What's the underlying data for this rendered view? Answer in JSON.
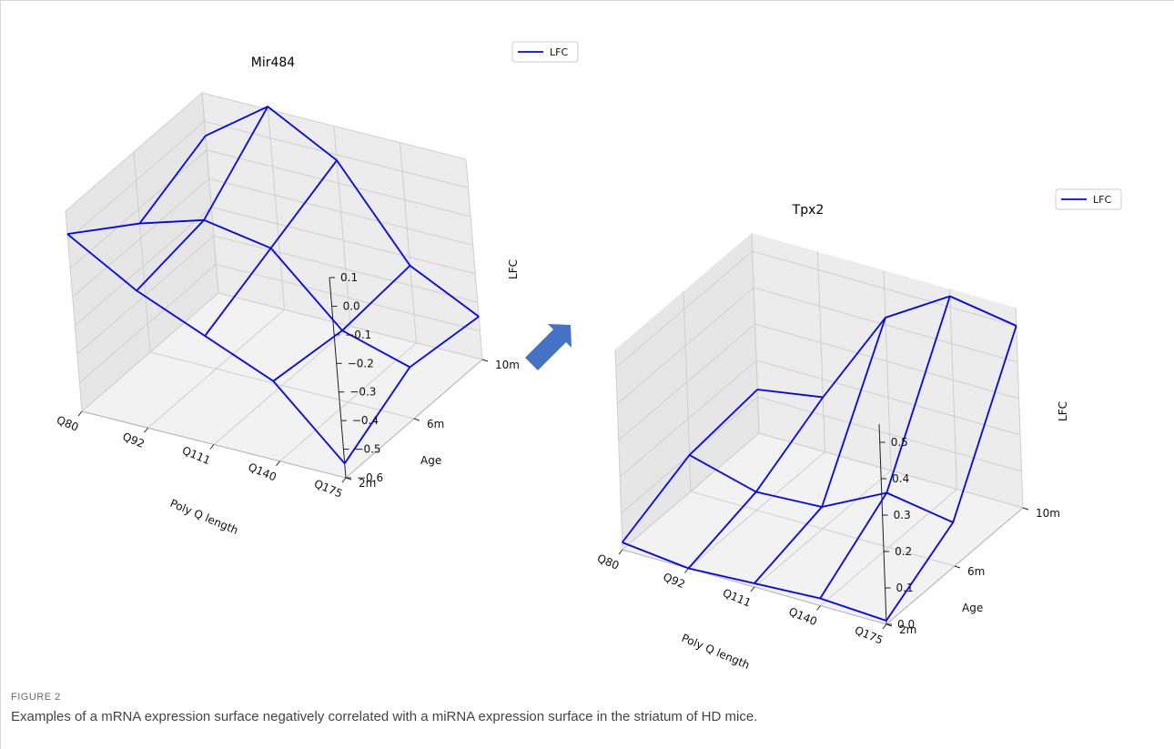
{
  "figure": {
    "label": "FIGURE 2",
    "caption": "Examples of a mRNA expression surface negatively correlated with a miRNA expression surface in the striatum of HD mice."
  },
  "arrow": {
    "color": "#4472c4"
  },
  "chart_data": [
    {
      "type": "line",
      "subtype": "3d-wireframe",
      "title": "Mir484",
      "legend": [
        "LFC"
      ],
      "legend_placement": "top-right",
      "color": "#0000ff",
      "xlabel": "Poly Q length",
      "ylabel": "Age",
      "zlabel": "LFC",
      "x_categories": [
        "Q80",
        "Q92",
        "Q111",
        "Q140",
        "Q175"
      ],
      "y_categories": [
        "2m",
        "6m",
        "10m"
      ],
      "zlim": [
        -0.6,
        0.1
      ],
      "z_ticks": [
        "0.1",
        "0.0",
        "−0.1",
        "−0.2",
        "−0.3",
        "−0.4",
        "−0.5",
        "−0.6"
      ],
      "values": [
        [
          0.02,
          -0.12,
          -0.22,
          -0.32,
          -0.55
        ],
        [
          -0.15,
          -0.08,
          -0.12,
          -0.35,
          -0.42
        ],
        [
          -0.05,
          0.11,
          -0.02,
          -0.33,
          -0.45
        ]
      ]
    },
    {
      "type": "line",
      "subtype": "3d-wireframe",
      "title": "Tpx2",
      "legend": [
        "LFC"
      ],
      "legend_placement": "top-right",
      "color": "#0000ff",
      "xlabel": "Poly Q length",
      "ylabel": "Age",
      "zlabel": "LFC",
      "x_categories": [
        "Q80",
        "Q92",
        "Q111",
        "Q140",
        "Q175"
      ],
      "y_categories": [
        "2m",
        "6m",
        "10m"
      ],
      "zlim": [
        0.0,
        0.55
      ],
      "z_ticks": [
        "0.0",
        "0.1",
        "0.2",
        "0.3",
        "0.4",
        "0.5"
      ],
      "values": [
        [
          0.02,
          0.0,
          0.01,
          0.02,
          0.01
        ],
        [
          0.1,
          0.05,
          0.06,
          0.15,
          0.12
        ],
        [
          0.12,
          0.15,
          0.42,
          0.53,
          0.5
        ]
      ]
    }
  ]
}
